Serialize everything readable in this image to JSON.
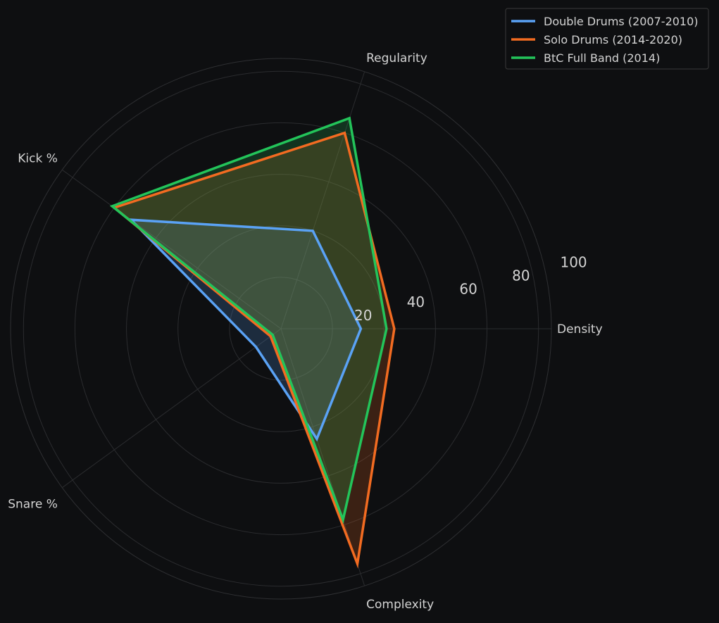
{
  "chart_data": {
    "type": "radar",
    "axes": [
      "Density",
      "Regularity",
      "Kick %",
      "Snare %",
      "Complexity"
    ],
    "rlim": [
      0,
      105
    ],
    "rticks": [
      20,
      40,
      60,
      80,
      100
    ],
    "grid": true,
    "legend_position": "top-right",
    "series": [
      {
        "name": "Double Drums (2007-2010)",
        "values": [
          31,
          40,
          72,
          12,
          45
        ],
        "color": "#5aa2f5"
      },
      {
        "name": "Solo Drums (2014-2020)",
        "values": [
          44,
          80,
          80,
          5,
          96
        ],
        "color": "#f26b21"
      },
      {
        "name": "BtC Full Band (2014)",
        "values": [
          41,
          86,
          81,
          4,
          78
        ],
        "color": "#23c45a"
      }
    ]
  }
}
